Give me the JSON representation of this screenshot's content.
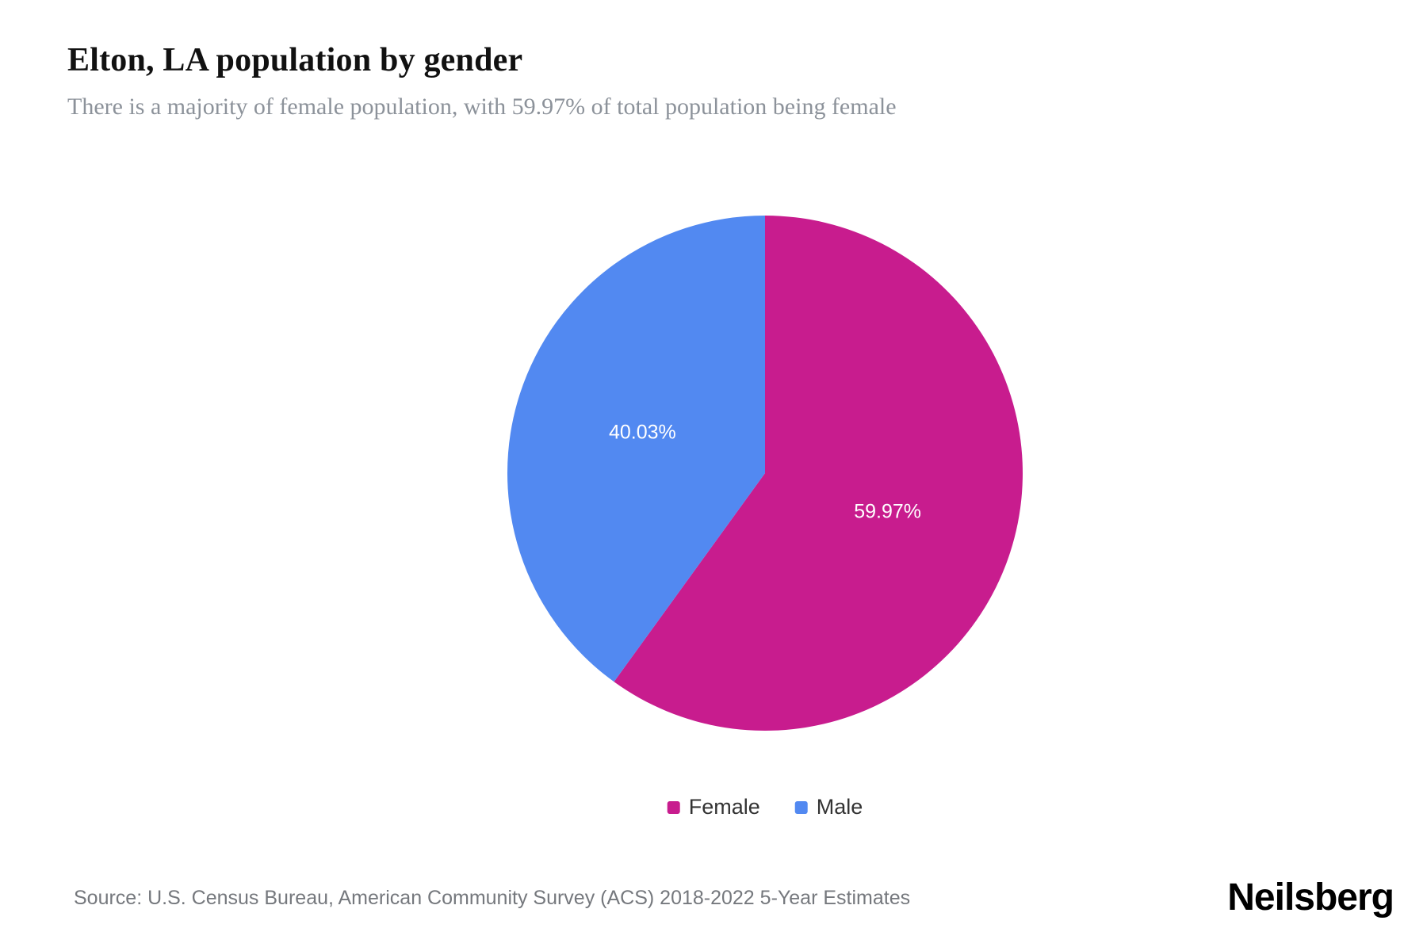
{
  "page": {
    "title": "Elton, LA population by gender",
    "subtitle": "There is a majority of female population, with 59.97% of total population being female",
    "source": "Source: U.S. Census Bureau, American Community Survey (ACS) 2018-2022 5-Year Estimates",
    "brand": "Neilsberg"
  },
  "colors": {
    "female": "#c81c8e",
    "male": "#5289f1",
    "slice_label_text": "#ffffff",
    "subtitle_text": "#8c929a",
    "source_text": "#75787d"
  },
  "chart_data": {
    "type": "pie",
    "title": "Elton, LA population by gender",
    "start_angle_deg": 0,
    "direction": "clockwise",
    "legend_position": "bottom",
    "slices": [
      {
        "label": "Female",
        "value": 59.97,
        "display": "59.97%",
        "color": "#c81c8e"
      },
      {
        "label": "Male",
        "value": 40.03,
        "display": "40.03%",
        "color": "#5289f1"
      }
    ]
  },
  "legend": {
    "items": [
      {
        "label": "Female",
        "color": "#c81c8e"
      },
      {
        "label": "Male",
        "color": "#5289f1"
      }
    ]
  }
}
